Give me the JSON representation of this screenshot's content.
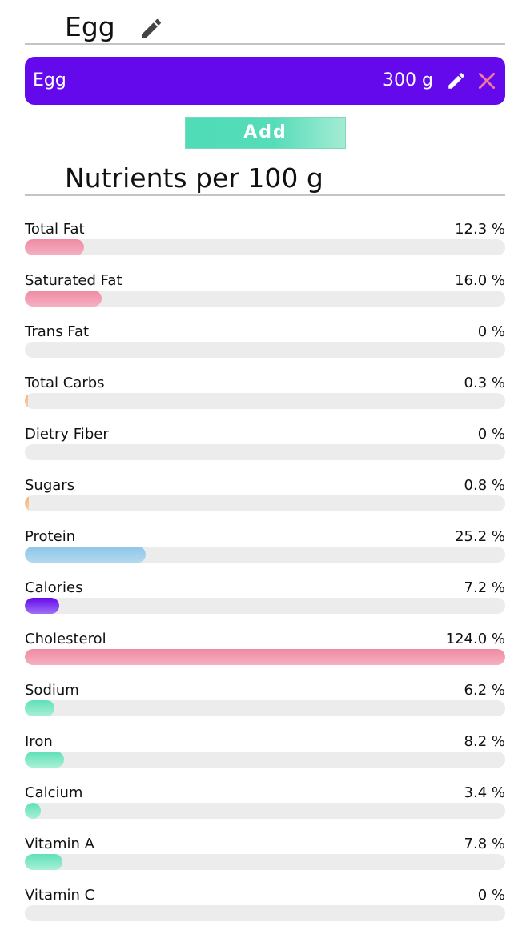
{
  "food": {
    "title": "Egg"
  },
  "items": [
    {
      "name": "Egg",
      "quantity": "300 g"
    }
  ],
  "actions": {
    "add_label": "Add"
  },
  "section": {
    "title": "Nutrients per 100 g"
  },
  "colors": {
    "accent": "#6409ec",
    "add_button": "#4fdcb7",
    "remove_icon": "#f07a9a",
    "track": "#ececec"
  },
  "nutrients": [
    {
      "label": "Total Fat",
      "value_text": "12.3 %",
      "percent": 12.3,
      "color": "pink"
    },
    {
      "label": "Saturated Fat",
      "value_text": "16.0 %",
      "percent": 16.0,
      "color": "pink"
    },
    {
      "label": "Trans Fat",
      "value_text": "0 %",
      "percent": 0,
      "color": "pink"
    },
    {
      "label": "Total Carbs",
      "value_text": "0.3 %",
      "percent": 0.3,
      "color": "orange"
    },
    {
      "label": "Dietry Fiber",
      "value_text": "0 %",
      "percent": 0,
      "color": "orange"
    },
    {
      "label": "Sugars",
      "value_text": "0.8 %",
      "percent": 0.8,
      "color": "orange"
    },
    {
      "label": "Protein",
      "value_text": "25.2 %",
      "percent": 25.2,
      "color": "blue"
    },
    {
      "label": "Calories",
      "value_text": "7.2 %",
      "percent": 7.2,
      "color": "purple"
    },
    {
      "label": "Cholesterol",
      "value_text": "124.0 %",
      "percent": 124.0,
      "color": "pink"
    },
    {
      "label": "Sodium",
      "value_text": "6.2 %",
      "percent": 6.2,
      "color": "teal"
    },
    {
      "label": "Iron",
      "value_text": "8.2 %",
      "percent": 8.2,
      "color": "teal"
    },
    {
      "label": "Calcium",
      "value_text": "3.4 %",
      "percent": 3.4,
      "color": "teal"
    },
    {
      "label": "Vitamin A",
      "value_text": "7.8 %",
      "percent": 7.8,
      "color": "teal"
    },
    {
      "label": "Vitamin C",
      "value_text": "0 %",
      "percent": 0,
      "color": "teal"
    }
  ]
}
